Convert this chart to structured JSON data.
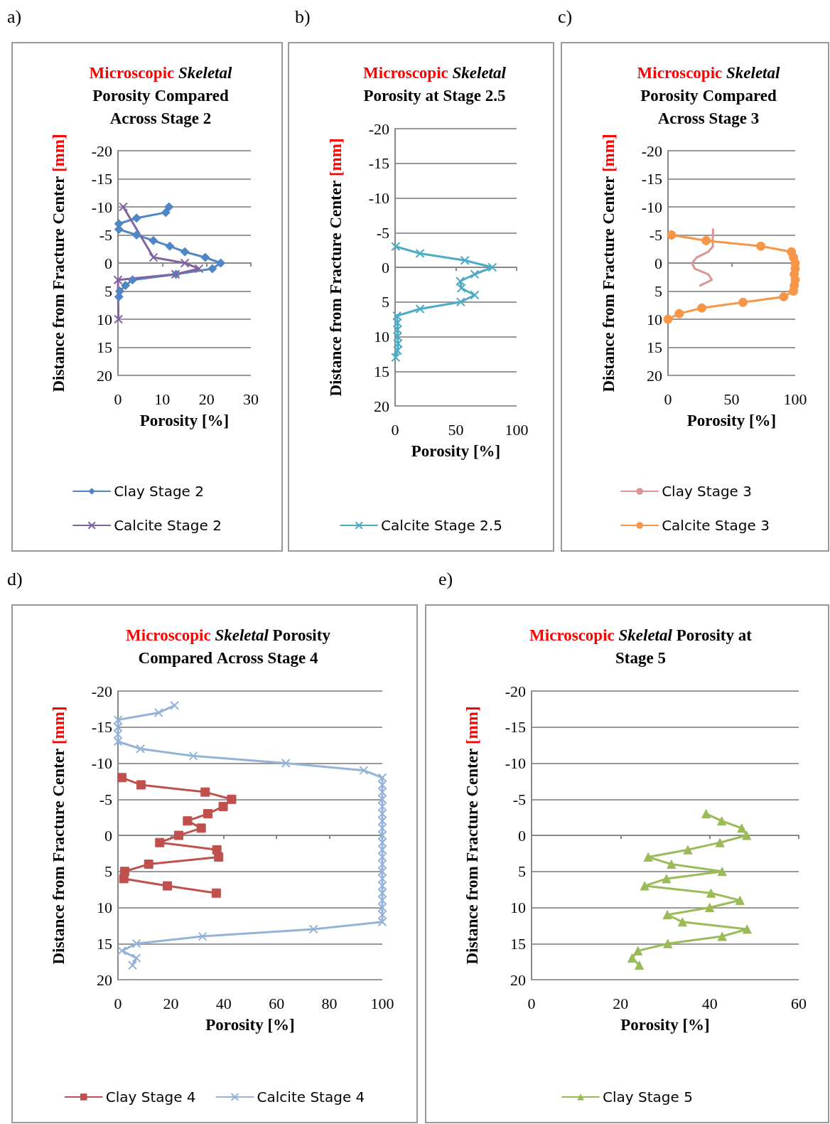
{
  "chart_data": [
    {
      "type": "line",
      "title": "Microscopic Skeletal\nPorosity Compared\nAcross Stage 2",
      "xlabel": "Porosity [%]",
      "ylabel": "Distance from Fracture Center [mm]",
      "annotations": [
        "a)"
      ],
      "xlim": [
        0,
        30
      ],
      "xticks": [
        0,
        10,
        20,
        30
      ],
      "ylim": [
        20,
        -20
      ],
      "yticks": [
        -20,
        -15,
        -10,
        -5,
        0,
        5,
        10,
        15,
        20
      ],
      "grid": "y",
      "legend": "bottom",
      "series": [
        {
          "name": "Clay Stage 2",
          "color": "#4f86c6",
          "marker": "diamond",
          "x": [
            11.5,
            10.8,
            4.2,
            0.2,
            0.2,
            4.2,
            8,
            11.7,
            15.1,
            19.7,
            23.2,
            21.3,
            13.1,
            3.3,
            1.7,
            0.4,
            0.2
          ],
          "values": [
            -10,
            -9,
            -8,
            -7,
            -6,
            -5,
            -4,
            -3,
            -2,
            -1,
            0,
            1,
            2,
            3,
            4,
            5,
            6
          ]
        },
        {
          "name": "Calcite Stage 2",
          "color": "#8064a2",
          "marker": "cross",
          "x": [
            1.2,
            8,
            15.1,
            18.3,
            13,
            0,
            0.1
          ],
          "values": [
            -10,
            -1,
            0,
            1,
            2,
            3,
            10
          ]
        }
      ]
    },
    {
      "type": "line",
      "title": "Microscopic Skeletal\nPorosity at Stage 2.5",
      "xlabel": "Porosity [%]",
      "ylabel": "Distance from Fracture Center [mm]",
      "annotations": [
        "b)"
      ],
      "xlim": [
        0,
        100
      ],
      "xticks": [
        0,
        50,
        100
      ],
      "ylim": [
        20,
        -20
      ],
      "yticks": [
        -20,
        -15,
        -10,
        -5,
        0,
        5,
        10,
        15,
        20
      ],
      "grid": "y",
      "legend": "bottom",
      "series": [
        {
          "name": "Calcite Stage 2.5",
          "color": "#4bacc6",
          "marker": "cross",
          "x": [
            0.5,
            20.5,
            57.4,
            80,
            65.5,
            53.6,
            54.5,
            65.5,
            54,
            20.5,
            1.5,
            2,
            2,
            2,
            2.5,
            2,
            0.5
          ],
          "values": [
            -3,
            -2,
            -1,
            0,
            1,
            2,
            3,
            4,
            5,
            6,
            7,
            8,
            9,
            10,
            11,
            12,
            13
          ]
        }
      ]
    },
    {
      "type": "line",
      "title": "Microscopic Skeletal\nPorosity Compared\nAcross Stage 3",
      "xlabel": "Porosity [%]",
      "ylabel": "Distance from Fracture Center [mm]",
      "annotations": [
        "c)"
      ],
      "xlim": [
        0,
        100
      ],
      "xticks": [
        0,
        50,
        100
      ],
      "ylim": [
        20,
        -20
      ],
      "yticks": [
        -20,
        -15,
        -10,
        -5,
        0,
        5,
        10,
        15,
        20
      ],
      "grid": "y",
      "legend": "bottom",
      "series": [
        {
          "name": "Clay Stage 3",
          "color": "#d99694",
          "marker": "none",
          "x": [
            35.4,
            35.4,
            35,
            35.4,
            31.7,
            22.6,
            18.9,
            21,
            31.7,
            34.5,
            25.3
          ],
          "values": [
            -6,
            -5,
            -4,
            -3,
            -2,
            -1,
            0,
            1,
            2,
            3,
            4
          ]
        },
        {
          "name": "Calcite Stage 3",
          "color": "#f79646",
          "marker": "circle",
          "x": [
            2.8,
            30,
            73,
            97,
            98.7,
            100,
            100,
            99.3,
            100,
            99.3,
            98.7,
            91,
            59,
            26.6,
            8.8,
            0
          ],
          "values": [
            -5,
            -4,
            -3,
            -2,
            -1,
            0,
            1,
            2,
            3,
            4,
            5,
            6,
            7,
            8,
            9,
            10
          ]
        }
      ]
    },
    {
      "type": "line",
      "title": "Microscopic Skeletal Porosity\nCompared Across Stage 4",
      "xlabel": "Porosity [%]",
      "ylabel": "Distance from Fracture Center [mm]",
      "annotations": [
        "d)"
      ],
      "xlim": [
        0,
        100
      ],
      "xticks": [
        0,
        20,
        40,
        60,
        80,
        100
      ],
      "ylim": [
        20,
        -20
      ],
      "yticks": [
        -20,
        -15,
        -10,
        -5,
        0,
        5,
        10,
        15,
        20
      ],
      "grid": "y",
      "legend": "bottom",
      "series": [
        {
          "name": "Clay Stage 4",
          "color": "#c0504d",
          "marker": "square",
          "x": [
            1.5,
            8.7,
            33,
            43,
            39.8,
            34,
            26.3,
            31.5,
            23,
            15.8,
            37.4,
            38.1,
            11.6,
            2.5,
            2.2,
            18.7,
            37.2
          ],
          "values": [
            -8,
            -7,
            -6,
            -5,
            -4,
            -3,
            -2,
            -1,
            0,
            1,
            2,
            3,
            4,
            5,
            6,
            7,
            8
          ]
        },
        {
          "name": "Calcite Stage 4",
          "color": "#95b3d7",
          "marker": "cross",
          "x": [
            21.4,
            15.4,
            0,
            0,
            0,
            0,
            8.5,
            28.5,
            63.5,
            93,
            100,
            100,
            100,
            100,
            100,
            100,
            100,
            100,
            100,
            100,
            100,
            100,
            100,
            100,
            100,
            100,
            100,
            100,
            100,
            100,
            100,
            74,
            32,
            7,
            1.5,
            7,
            5.5
          ],
          "values": [
            -18,
            -17,
            -16,
            -15,
            -14,
            -13,
            -12,
            -11,
            -10,
            -9,
            -8,
            -7,
            -6,
            -5,
            -4,
            -3,
            -2,
            -1,
            0,
            1,
            2,
            3,
            4,
            5,
            6,
            7,
            8,
            9,
            10,
            11,
            12,
            13,
            14,
            15,
            16,
            17,
            18
          ]
        }
      ]
    },
    {
      "type": "line",
      "title": "Microscopic Skeletal Porosity at\nStage 5",
      "xlabel": "Porosity [%]",
      "ylabel": "Distance from Fracture Center [mm]",
      "annotations": [
        "e)"
      ],
      "xlim": [
        0,
        60
      ],
      "xticks": [
        0,
        20,
        40,
        60
      ],
      "ylim": [
        20,
        -20
      ],
      "yticks": [
        -20,
        -15,
        -10,
        -5,
        0,
        5,
        10,
        15,
        20
      ],
      "grid": "y",
      "legend": "bottom",
      "series": [
        {
          "name": "Clay Stage 5",
          "color": "#9bbb59",
          "marker": "triangle",
          "x": [
            39.2,
            42.7,
            47.2,
            48.3,
            42.3,
            35.1,
            26.2,
            31.4,
            42.8,
            30.3,
            25.4,
            40.3,
            46.8,
            40,
            30.5,
            33.9,
            48.4,
            42.8,
            30.6,
            23.9,
            22.6,
            24.2
          ],
          "values": [
            -3,
            -2,
            -1,
            0,
            1,
            2,
            3,
            4,
            5,
            6,
            7,
            8,
            9,
            10,
            11,
            12,
            13,
            14,
            15,
            16,
            17,
            18
          ]
        }
      ]
    }
  ]
}
